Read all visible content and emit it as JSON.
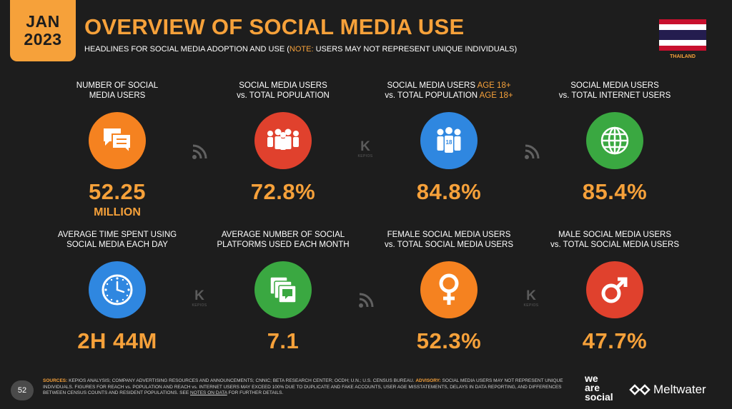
{
  "header": {
    "month": "JAN",
    "year": "2023",
    "title": "OVERVIEW OF SOCIAL MEDIA USE",
    "subtitle_prefix": "HEADLINES FOR SOCIAL MEDIA ADOPTION AND USE (",
    "subtitle_note": "NOTE:",
    "subtitle_suffix": " USERS MAY NOT REPRESENT UNIQUE INDIVIDUALS)",
    "country": "THAILAND"
  },
  "stats": [
    {
      "label_1": "NUMBER OF SOCIAL",
      "label_2": "MEDIA USERS",
      "value": "52.25",
      "unit": "MILLION",
      "icon": "chat-bubbles-icon"
    },
    {
      "label_1": "SOCIAL MEDIA USERS",
      "label_2": "vs. TOTAL POPULATION",
      "value": "72.8%",
      "icon": "people-group-icon"
    },
    {
      "label_1a": "SOCIAL MEDIA USERS ",
      "label_1b": "AGE 18+",
      "label_2a": "vs. TOTAL POPULATION ",
      "label_2b": "AGE 18+",
      "value": "84.8%",
      "icon": "adults-18-icon"
    },
    {
      "label_1": "SOCIAL MEDIA USERS",
      "label_2": "vs. TOTAL INTERNET USERS",
      "value": "85.4%",
      "icon": "globe-icon"
    },
    {
      "label_1": "AVERAGE TIME SPENT USING",
      "label_2": "SOCIAL MEDIA EACH DAY",
      "value": "2H 44M",
      "icon": "clock-icon"
    },
    {
      "label_1": "AVERAGE NUMBER OF SOCIAL",
      "label_2": "PLATFORMS USED EACH MONTH",
      "value": "7.1",
      "icon": "stacked-chat-icon"
    },
    {
      "label_1": "FEMALE SOCIAL MEDIA USERS",
      "label_2": "vs. TOTAL SOCIAL MEDIA USERS",
      "value": "52.3%",
      "icon": "female-symbol-icon"
    },
    {
      "label_1": "MALE SOCIAL MEDIA USERS",
      "label_2": "vs. TOTAL SOCIAL MEDIA USERS",
      "value": "47.7%",
      "icon": "male-symbol-icon"
    }
  ],
  "kepios": {
    "letter": "K",
    "text": "KEPIOS"
  },
  "footer": {
    "page": "52",
    "sources_key": "SOURCES:",
    "sources_text": " KEPIOS ANALYSIS; COMPANY ADVERTISING RESOURCES AND ANNOUNCEMENTS; CNNIC; BETA RESEARCH CENTER; OCDH; U.N.; U.S. CENSUS BUREAU. ",
    "advisory_key": "ADVISORY:",
    "advisory_text": " SOCIAL MEDIA USERS MAY NOT REPRESENT UNIQUE INDIVIDUALS. FIGURES FOR REACH vs. POPULATION AND REACH vs. INTERNET USERS MAY EXCEED 100% DUE TO DUPLICATE AND FAKE ACCOUNTS, USER AGE MISSTATEMENTS, DELAYS IN DATA REPORTING, AND DIFFERENCES BETWEEN CENSUS COUNTS AND RESIDENT POPULATIONS. SEE ",
    "notes_link": "NOTES ON DATA",
    "advisory_end": " FOR FURTHER DETAILS.",
    "brand_1": "we",
    "brand_2": "are",
    "brand_3": "social",
    "partner": "Meltwater"
  },
  "colors": {
    "accent": "#f6a13a",
    "background": "#1d1d1d",
    "orange": "#f58220",
    "red": "#e0412d",
    "blue": "#2f87e0",
    "green": "#3aa841"
  }
}
